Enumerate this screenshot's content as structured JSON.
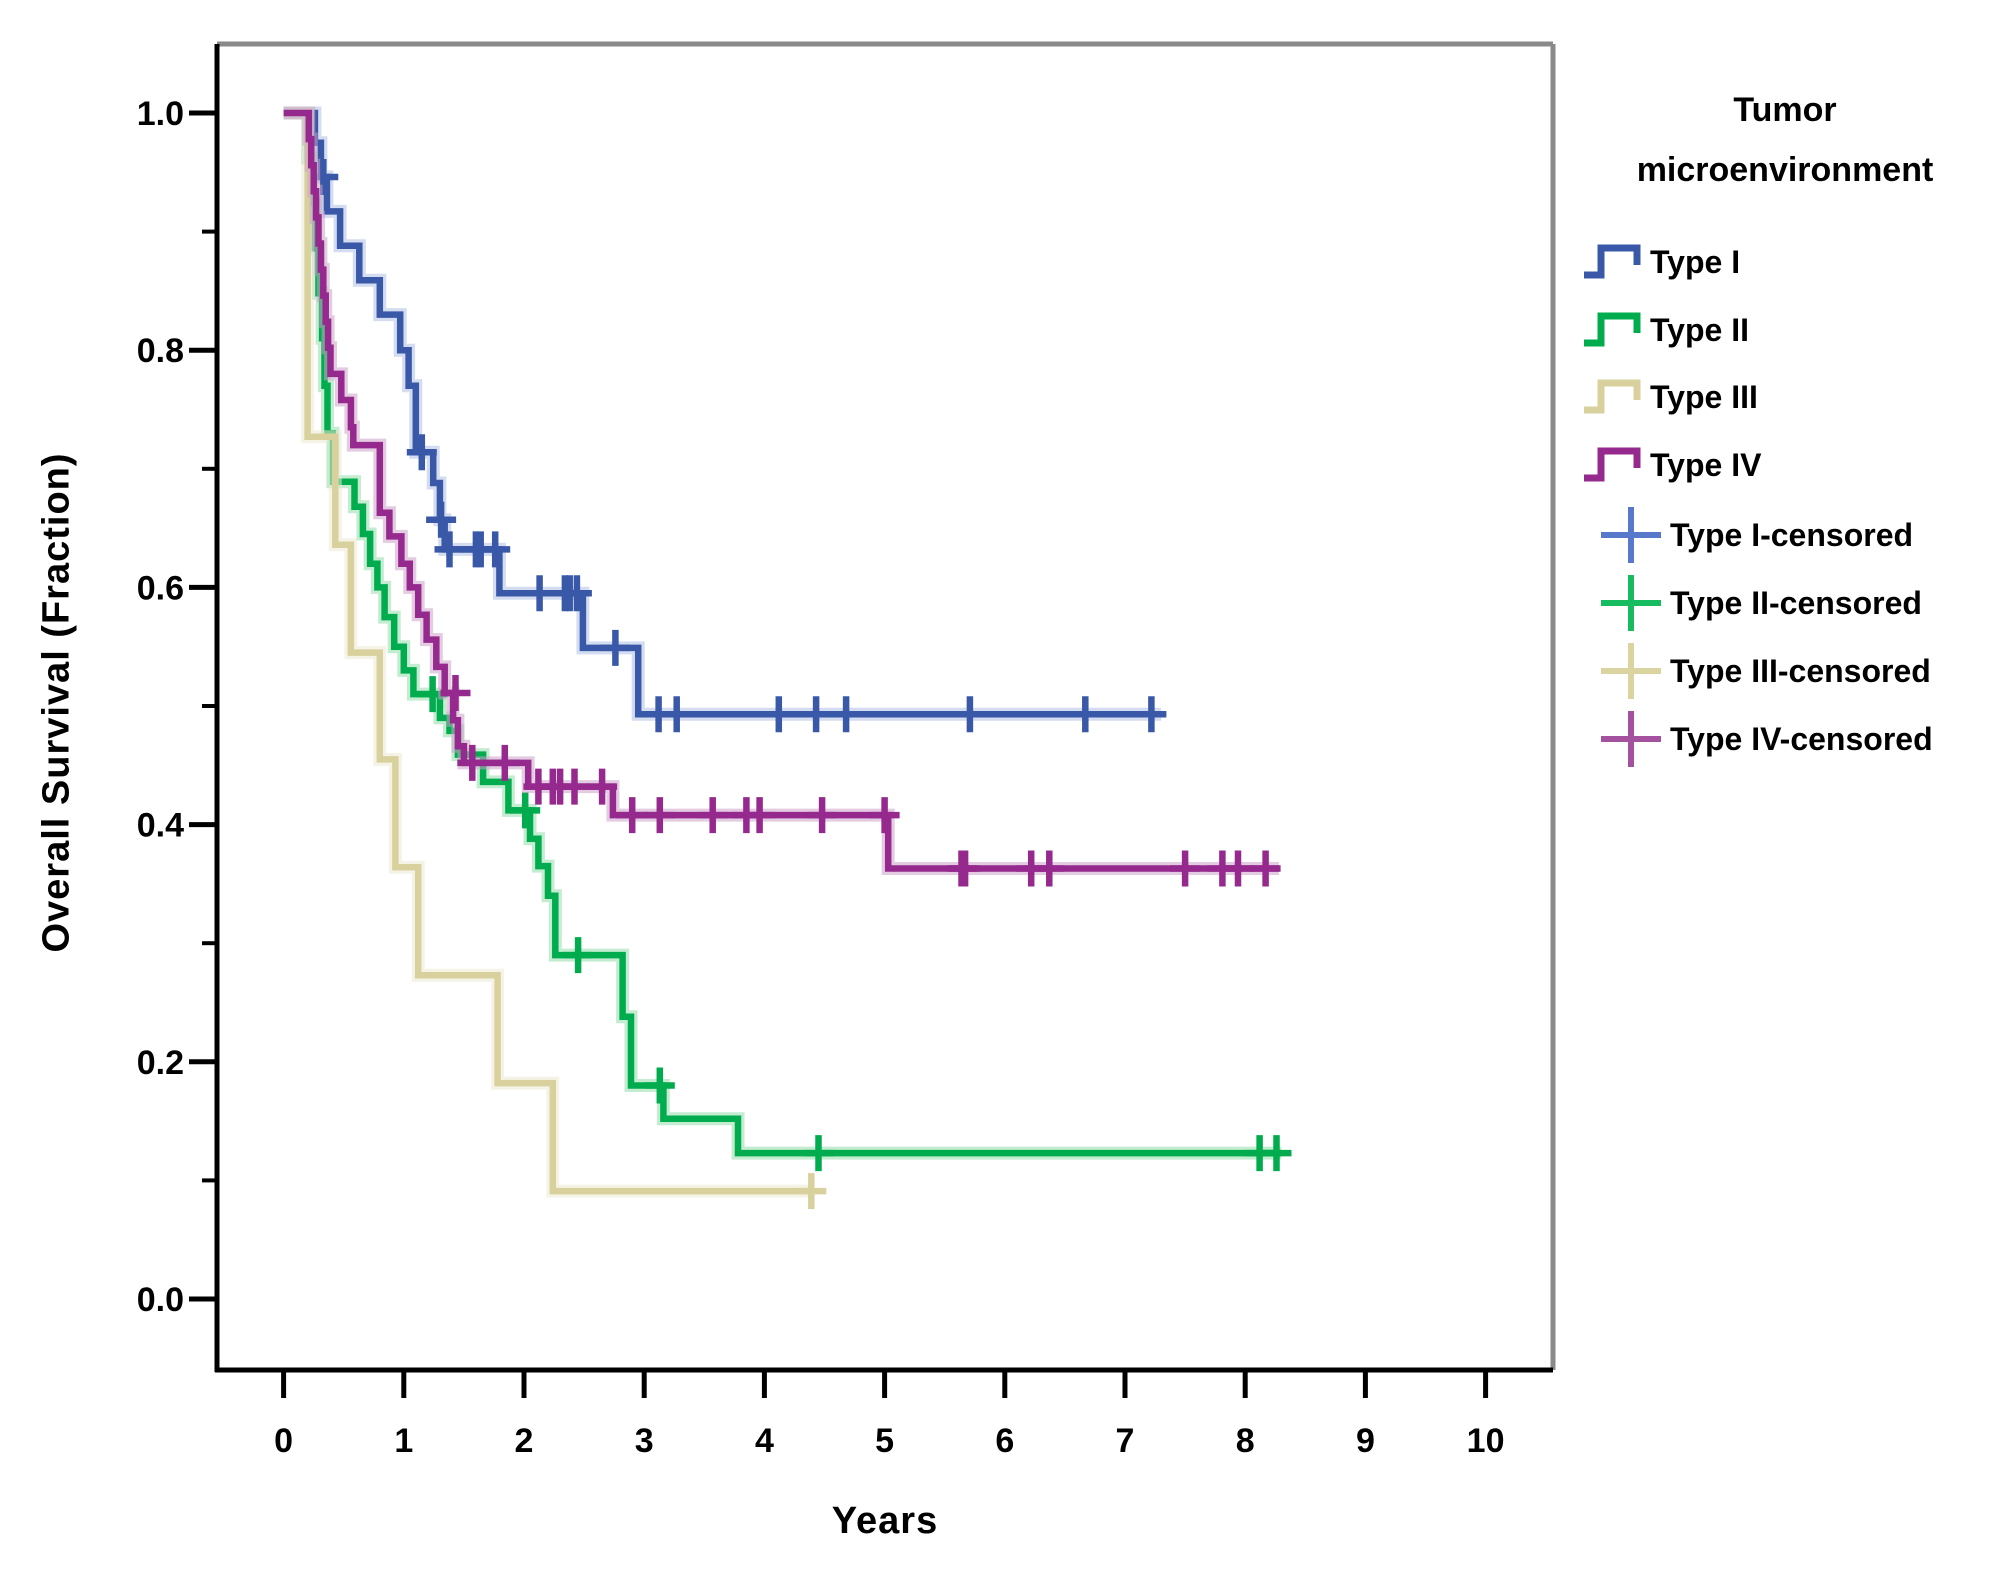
{
  "chart_data": {
    "type": "line",
    "subtype": "kaplan-meier-step-plot",
    "title": "",
    "xlabel": "Years",
    "ylabel": "Overall Survival (Fraction)",
    "grid": false,
    "legend_position": "right",
    "legend_title_line1": "Tumor",
    "legend_title_line2": "microenvironment",
    "xlim": [
      -0.55,
      10.55
    ],
    "ylim": [
      -0.06,
      1.06
    ],
    "x_ticks": [
      0,
      1,
      2,
      3,
      4,
      5,
      6,
      7,
      8,
      9,
      10
    ],
    "x_tick_labels": [
      "0",
      "1",
      "2",
      "3",
      "4",
      "5",
      "6",
      "7",
      "8",
      "9",
      "10"
    ],
    "y_ticks_major": [
      1.0,
      0.8,
      0.6,
      0.4,
      0.2,
      0.0
    ],
    "y_tick_labels": [
      "1.0",
      "0.8",
      "0.6",
      "0.4",
      "0.2",
      "0.0"
    ],
    "y_ticks_minor": [
      0.9,
      0.7,
      0.5,
      0.3,
      0.1
    ],
    "series": [
      {
        "name": "Type I",
        "color": "#3A58A8",
        "halo": "#AFC0E4",
        "start_t": 0,
        "start_v": 1.0,
        "end_t": 7.3,
        "steps": [
          [
            0.26,
            0.975
          ],
          [
            0.31,
            0.946
          ],
          [
            0.36,
            0.917
          ],
          [
            0.47,
            0.888
          ],
          [
            0.63,
            0.859
          ],
          [
            0.8,
            0.83
          ],
          [
            0.97,
            0.8
          ],
          [
            1.04,
            0.77
          ],
          [
            1.1,
            0.714
          ],
          [
            1.245,
            0.688
          ],
          [
            1.3,
            0.657
          ],
          [
            1.34,
            0.632
          ],
          [
            1.795,
            0.595
          ],
          [
            2.49,
            0.549
          ],
          [
            2.95,
            0.493
          ]
        ],
        "censors": [
          [
            0.33,
            0.946
          ],
          [
            1.15,
            0.714
          ],
          [
            1.31,
            0.657
          ],
          [
            1.38,
            0.632
          ],
          [
            1.6,
            0.632
          ],
          [
            1.64,
            0.632
          ],
          [
            1.76,
            0.632
          ],
          [
            2.13,
            0.595
          ],
          [
            2.34,
            0.595
          ],
          [
            2.38,
            0.595
          ],
          [
            2.44,
            0.595
          ],
          [
            2.76,
            0.549
          ],
          [
            3.12,
            0.493
          ],
          [
            3.27,
            0.493
          ],
          [
            4.12,
            0.493
          ],
          [
            4.43,
            0.493
          ],
          [
            4.68,
            0.493
          ],
          [
            5.71,
            0.493
          ],
          [
            6.67,
            0.493
          ],
          [
            7.22,
            0.493
          ]
        ]
      },
      {
        "name": "Type II",
        "color": "#00AC4E",
        "halo": "#93DCAC",
        "start_t": 0,
        "start_v": 1.0,
        "end_t": 8.3,
        "steps": [
          [
            0.2,
            0.962
          ],
          [
            0.23,
            0.924
          ],
          [
            0.26,
            0.886
          ],
          [
            0.29,
            0.848
          ],
          [
            0.32,
            0.81
          ],
          [
            0.34,
            0.77
          ],
          [
            0.365,
            0.73
          ],
          [
            0.41,
            0.689
          ],
          [
            0.59,
            0.668
          ],
          [
            0.66,
            0.645
          ],
          [
            0.72,
            0.62
          ],
          [
            0.78,
            0.6
          ],
          [
            0.84,
            0.575
          ],
          [
            0.92,
            0.55
          ],
          [
            1.0,
            0.53
          ],
          [
            1.08,
            0.51
          ],
          [
            1.3,
            0.49
          ],
          [
            1.38,
            0.479
          ],
          [
            1.45,
            0.459
          ],
          [
            1.66,
            0.436
          ],
          [
            1.87,
            0.412
          ],
          [
            2.05,
            0.388
          ],
          [
            2.12,
            0.365
          ],
          [
            2.2,
            0.34
          ],
          [
            2.26,
            0.29
          ],
          [
            2.82,
            0.238
          ],
          [
            2.89,
            0.18
          ],
          [
            3.16,
            0.152
          ],
          [
            3.78,
            0.123
          ]
        ],
        "censors": [
          [
            1.24,
            0.51
          ],
          [
            2.01,
            0.412
          ],
          [
            2.45,
            0.29
          ],
          [
            3.13,
            0.18
          ],
          [
            4.45,
            0.123
          ],
          [
            8.12,
            0.123
          ],
          [
            8.26,
            0.123
          ]
        ]
      },
      {
        "name": "Type III",
        "color": "#D9D19D",
        "halo": "#EDE9D2",
        "start_t": 0,
        "start_v": 1.0,
        "end_t": 4.4,
        "steps": [
          [
            0.2,
            0.727
          ],
          [
            0.43,
            0.636
          ],
          [
            0.56,
            0.545
          ],
          [
            0.8,
            0.455
          ],
          [
            0.93,
            0.364
          ],
          [
            1.12,
            0.273
          ],
          [
            1.78,
            0.182
          ],
          [
            2.24,
            0.091
          ]
        ],
        "censors": [
          [
            4.39,
            0.091
          ]
        ]
      },
      {
        "name": "Type IV",
        "color": "#95298D",
        "halo": "#CCA2C9",
        "start_t": 0,
        "start_v": 1.0,
        "end_t": 8.28,
        "steps": [
          [
            0.21,
            0.978
          ],
          [
            0.23,
            0.956
          ],
          [
            0.25,
            0.934
          ],
          [
            0.27,
            0.912
          ],
          [
            0.29,
            0.89
          ],
          [
            0.31,
            0.868
          ],
          [
            0.33,
            0.846
          ],
          [
            0.35,
            0.824
          ],
          [
            0.37,
            0.802
          ],
          [
            0.39,
            0.78
          ],
          [
            0.48,
            0.758
          ],
          [
            0.56,
            0.735
          ],
          [
            0.58,
            0.72
          ],
          [
            0.8,
            0.663
          ],
          [
            0.88,
            0.643
          ],
          [
            0.98,
            0.62
          ],
          [
            1.05,
            0.6
          ],
          [
            1.12,
            0.577
          ],
          [
            1.19,
            0.556
          ],
          [
            1.27,
            0.533
          ],
          [
            1.34,
            0.511
          ],
          [
            1.41,
            0.488
          ],
          [
            1.45,
            0.466
          ],
          [
            1.5,
            0.452
          ],
          [
            2.035,
            0.432
          ],
          [
            2.74,
            0.408
          ],
          [
            5.03,
            0.363
          ]
        ],
        "censors": [
          [
            1.43,
            0.511
          ],
          [
            1.57,
            0.452
          ],
          [
            1.84,
            0.452
          ],
          [
            2.12,
            0.432
          ],
          [
            2.24,
            0.432
          ],
          [
            2.3,
            0.432
          ],
          [
            2.42,
            0.432
          ],
          [
            2.65,
            0.432
          ],
          [
            2.9,
            0.408
          ],
          [
            3.13,
            0.408
          ],
          [
            3.57,
            0.408
          ],
          [
            3.85,
            0.408
          ],
          [
            3.96,
            0.408
          ],
          [
            4.48,
            0.408
          ],
          [
            5.0,
            0.408
          ],
          [
            5.64,
            0.363
          ],
          [
            5.67,
            0.363
          ],
          [
            6.22,
            0.363
          ],
          [
            6.37,
            0.363
          ],
          [
            7.5,
            0.363
          ],
          [
            7.81,
            0.363
          ],
          [
            7.94,
            0.363
          ],
          [
            8.17,
            0.363
          ]
        ]
      }
    ],
    "censored_legend": [
      {
        "name": "Type I-censored",
        "color": "#5878CC"
      },
      {
        "name": "Type II-censored",
        "color": "#17BC60"
      },
      {
        "name": "Type III-censored",
        "color": "#DCD4A0"
      },
      {
        "name": "Type IV-censored",
        "color": "#A452A0"
      }
    ]
  },
  "colors": {
    "background": "#FFFFFF",
    "axis_black": "#000000",
    "frame_gray": "#8A8A8A",
    "text": "#000000"
  }
}
